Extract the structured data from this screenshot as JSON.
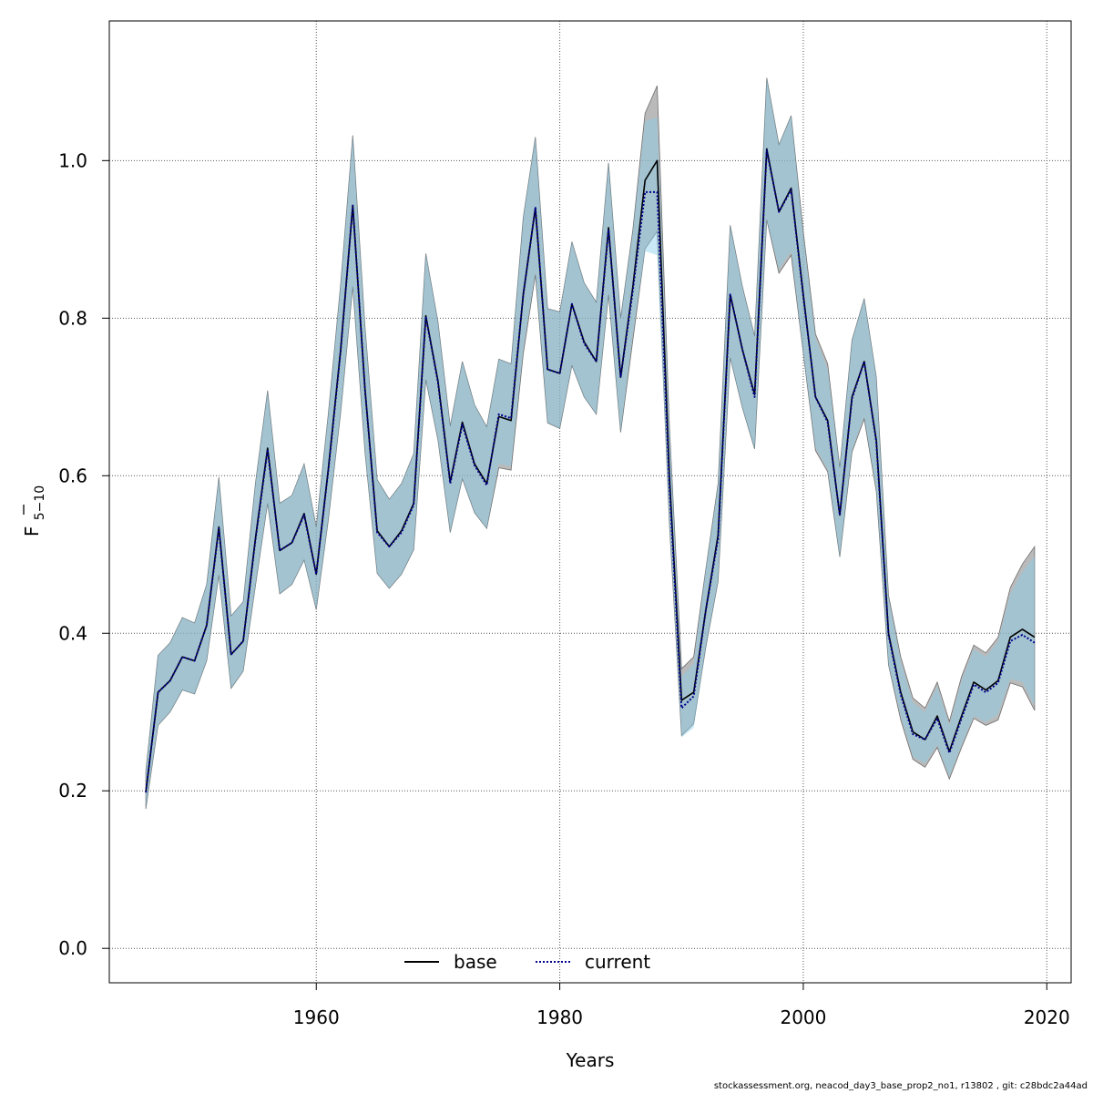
{
  "chart_data": {
    "type": "line",
    "xlabel": "Years",
    "ylabel_main": "F",
    "ylabel_sub": "5−10",
    "xlim": [
      1943,
      2022
    ],
    "ylim": [
      -0.0437,
      1.1773
    ],
    "x_ticks": [
      "1960",
      "1980",
      "2000",
      "2020"
    ],
    "y_ticks": [
      "0.0",
      "0.2",
      "0.4",
      "0.6",
      "0.8",
      "1.0"
    ],
    "grid": true,
    "legend_position": "bottom-center",
    "colors": {
      "base_band": "#8c8c8c",
      "current_band": "#87ceeb",
      "base_line": "#000000",
      "current_line": "#00008b",
      "grid": "#555555"
    },
    "x": [
      1946,
      1947,
      1948,
      1949,
      1950,
      1951,
      1952,
      1953,
      1954,
      1955,
      1956,
      1957,
      1958,
      1959,
      1960,
      1961,
      1962,
      1963,
      1964,
      1965,
      1966,
      1967,
      1968,
      1969,
      1970,
      1971,
      1972,
      1973,
      1974,
      1975,
      1976,
      1977,
      1978,
      1979,
      1980,
      1981,
      1982,
      1983,
      1984,
      1985,
      1986,
      1987,
      1988,
      1989,
      1990,
      1991,
      1992,
      1993,
      1994,
      1995,
      1996,
      1997,
      1998,
      1999,
      2000,
      2001,
      2002,
      2003,
      2004,
      2005,
      2006,
      2007,
      2008,
      2009,
      2010,
      2011,
      2012,
      2013,
      2014,
      2015,
      2016,
      2017,
      2018,
      2019
    ],
    "series": [
      {
        "name": "base",
        "values": [
          0.198,
          0.325,
          0.34,
          0.37,
          0.365,
          0.41,
          0.535,
          0.373,
          0.39,
          0.52,
          0.635,
          0.505,
          0.515,
          0.552,
          0.475,
          0.61,
          0.76,
          0.943,
          0.71,
          0.53,
          0.51,
          0.53,
          0.565,
          0.803,
          0.72,
          0.592,
          0.668,
          0.615,
          0.59,
          0.675,
          0.67,
          0.83,
          0.94,
          0.735,
          0.73,
          0.818,
          0.77,
          0.745,
          0.915,
          0.725,
          0.84,
          0.975,
          1.0,
          0.6,
          0.315,
          0.325,
          0.43,
          0.525,
          0.83,
          0.76,
          0.703,
          1.015,
          0.935,
          0.965,
          0.83,
          0.7,
          0.67,
          0.55,
          0.7,
          0.745,
          0.645,
          0.4,
          0.325,
          0.275,
          0.265,
          0.295,
          0.25,
          0.295,
          0.338,
          0.328,
          0.34,
          0.395,
          0.405,
          0.395
        ],
        "lower": [
          0.177,
          0.283,
          0.3,
          0.328,
          0.323,
          0.365,
          0.474,
          0.33,
          0.352,
          0.46,
          0.565,
          0.45,
          0.462,
          0.493,
          0.43,
          0.545,
          0.68,
          0.84,
          0.63,
          0.476,
          0.457,
          0.475,
          0.506,
          0.722,
          0.645,
          0.528,
          0.596,
          0.553,
          0.533,
          0.61,
          0.607,
          0.755,
          0.855,
          0.667,
          0.66,
          0.74,
          0.7,
          0.678,
          0.83,
          0.655,
          0.772,
          0.888,
          0.91,
          0.54,
          0.27,
          0.285,
          0.383,
          0.466,
          0.75,
          0.686,
          0.634,
          0.925,
          0.857,
          0.88,
          0.756,
          0.632,
          0.605,
          0.497,
          0.63,
          0.672,
          0.58,
          0.36,
          0.29,
          0.24,
          0.23,
          0.255,
          0.215,
          0.255,
          0.292,
          0.283,
          0.29,
          0.337,
          0.332,
          0.302
        ],
        "upper": [
          0.225,
          0.372,
          0.388,
          0.42,
          0.413,
          0.462,
          0.598,
          0.422,
          0.44,
          0.59,
          0.708,
          0.565,
          0.575,
          0.615,
          0.535,
          0.68,
          0.843,
          1.032,
          0.79,
          0.595,
          0.57,
          0.59,
          0.628,
          0.882,
          0.795,
          0.663,
          0.745,
          0.69,
          0.662,
          0.748,
          0.742,
          0.928,
          1.03,
          0.812,
          0.808,
          0.897,
          0.845,
          0.82,
          0.997,
          0.8,
          0.912,
          1.06,
          1.095,
          0.664,
          0.355,
          0.37,
          0.482,
          0.59,
          0.918,
          0.84,
          0.777,
          1.105,
          1.02,
          1.057,
          0.91,
          0.78,
          0.742,
          0.61,
          0.772,
          0.825,
          0.725,
          0.448,
          0.37,
          0.318,
          0.305,
          0.338,
          0.288,
          0.345,
          0.385,
          0.375,
          0.395,
          0.458,
          0.488,
          0.51
        ]
      },
      {
        "name": "current",
        "values": [
          0.198,
          0.325,
          0.34,
          0.37,
          0.365,
          0.41,
          0.533,
          0.373,
          0.39,
          0.518,
          0.633,
          0.505,
          0.515,
          0.55,
          0.475,
          0.608,
          0.758,
          0.943,
          0.71,
          0.528,
          0.51,
          0.528,
          0.563,
          0.802,
          0.718,
          0.59,
          0.665,
          0.613,
          0.588,
          0.678,
          0.673,
          0.83,
          0.94,
          0.735,
          0.73,
          0.818,
          0.768,
          0.745,
          0.912,
          0.725,
          0.835,
          0.96,
          0.96,
          0.59,
          0.305,
          0.32,
          0.43,
          0.52,
          0.83,
          0.76,
          0.7,
          1.013,
          0.935,
          0.963,
          0.828,
          0.7,
          0.668,
          0.55,
          0.698,
          0.745,
          0.643,
          0.398,
          0.322,
          0.272,
          0.265,
          0.292,
          0.248,
          0.292,
          0.335,
          0.325,
          0.337,
          0.39,
          0.398,
          0.388
        ],
        "lower": [
          0.177,
          0.283,
          0.3,
          0.328,
          0.323,
          0.365,
          0.474,
          0.33,
          0.352,
          0.46,
          0.565,
          0.45,
          0.462,
          0.493,
          0.43,
          0.545,
          0.68,
          0.84,
          0.63,
          0.476,
          0.457,
          0.475,
          0.506,
          0.722,
          0.645,
          0.528,
          0.596,
          0.553,
          0.533,
          0.615,
          0.612,
          0.76,
          0.858,
          0.667,
          0.66,
          0.74,
          0.7,
          0.678,
          0.83,
          0.655,
          0.78,
          0.885,
          0.88,
          0.54,
          0.268,
          0.28,
          0.383,
          0.466,
          0.75,
          0.686,
          0.634,
          0.925,
          0.862,
          0.885,
          0.756,
          0.635,
          0.608,
          0.497,
          0.632,
          0.675,
          0.582,
          0.36,
          0.295,
          0.243,
          0.235,
          0.258,
          0.218,
          0.258,
          0.295,
          0.287,
          0.297,
          0.342,
          0.338,
          0.308
        ],
        "upper": [
          0.225,
          0.372,
          0.388,
          0.42,
          0.413,
          0.462,
          0.598,
          0.422,
          0.44,
          0.59,
          0.708,
          0.565,
          0.575,
          0.615,
          0.535,
          0.68,
          0.843,
          1.032,
          0.79,
          0.595,
          0.57,
          0.59,
          0.628,
          0.882,
          0.795,
          0.663,
          0.745,
          0.69,
          0.662,
          0.748,
          0.742,
          0.928,
          1.03,
          0.812,
          0.808,
          0.897,
          0.845,
          0.82,
          0.997,
          0.8,
          0.91,
          1.05,
          1.055,
          0.664,
          0.345,
          0.362,
          0.482,
          0.588,
          0.918,
          0.84,
          0.777,
          1.105,
          1.02,
          1.057,
          0.905,
          0.775,
          0.735,
          0.61,
          0.772,
          0.825,
          0.725,
          0.445,
          0.365,
          0.312,
          0.3,
          0.333,
          0.283,
          0.34,
          0.38,
          0.37,
          0.39,
          0.45,
          0.478,
          0.498
        ]
      }
    ]
  },
  "footer_text": "stockassessment.org, neacod_day3_base_prop2_no1, r13802 , git: c28bdc2a44ad"
}
